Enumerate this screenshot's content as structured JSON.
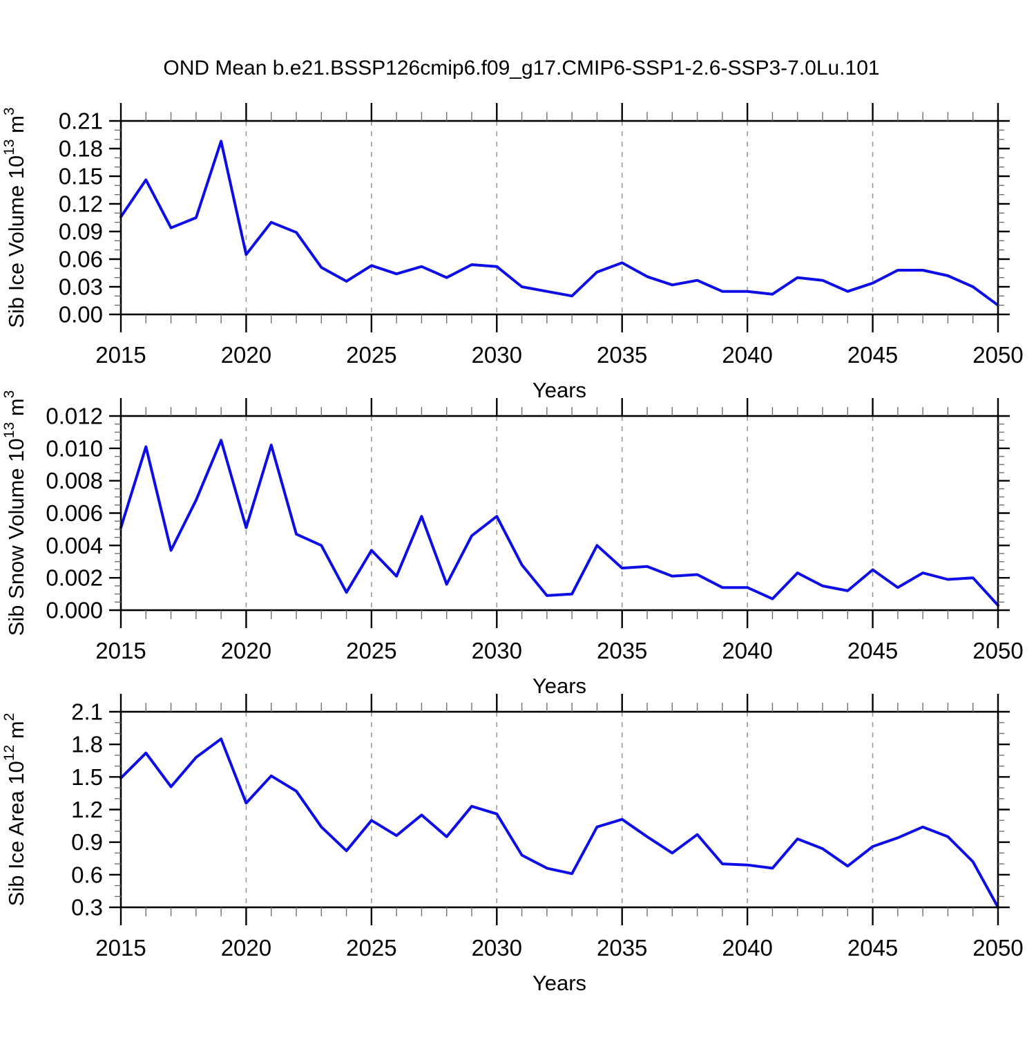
{
  "title": "OND Mean b.e21.BSSP126cmip6.f09_g17.CMIP6-SSP1-2.6-SSP3-7.0Lu.101",
  "line_color": "#0d0de8",
  "gridline_color": "#9a9a9a",
  "chart_data": [
    {
      "type": "line",
      "title": "",
      "xlabel": "Years",
      "ylabel": "Sib Ice Volume 10^13 m^3",
      "x": [
        2015,
        2016,
        2017,
        2018,
        2019,
        2020,
        2021,
        2022,
        2023,
        2024,
        2025,
        2026,
        2027,
        2028,
        2029,
        2030,
        2031,
        2032,
        2033,
        2034,
        2035,
        2036,
        2037,
        2038,
        2039,
        2040,
        2041,
        2042,
        2043,
        2044,
        2045,
        2046,
        2047,
        2048,
        2049,
        2050
      ],
      "values": [
        0.106,
        0.146,
        0.094,
        0.105,
        0.188,
        0.065,
        0.1,
        0.089,
        0.051,
        0.036,
        0.053,
        0.044,
        0.052,
        0.04,
        0.054,
        0.052,
        0.03,
        0.025,
        0.02,
        0.046,
        0.056,
        0.041,
        0.032,
        0.037,
        0.025,
        0.025,
        0.022,
        0.04,
        0.037,
        0.025,
        0.034,
        0.048,
        0.048,
        0.042,
        0.03,
        0.01
      ],
      "xlim": [
        2015,
        2050
      ],
      "ylim": [
        0.0,
        0.21
      ],
      "x_major_step": 5,
      "x_minor_step": 1,
      "y_major_step": 0.03,
      "y_minor_step": 0.01,
      "y_decimals": 2,
      "gridlines_x": [
        2020,
        2025,
        2030,
        2035,
        2040,
        2045
      ],
      "grid": "vertical-dashed-only",
      "legend": "none"
    },
    {
      "type": "line",
      "title": "",
      "xlabel": "Years",
      "ylabel": "Sib Snow Volume 10^13 m^3",
      "x": [
        2015,
        2016,
        2017,
        2018,
        2019,
        2020,
        2021,
        2022,
        2023,
        2024,
        2025,
        2026,
        2027,
        2028,
        2029,
        2030,
        2031,
        2032,
        2033,
        2034,
        2035,
        2036,
        2037,
        2038,
        2039,
        2040,
        2041,
        2042,
        2043,
        2044,
        2045,
        2046,
        2047,
        2048,
        2049,
        2050
      ],
      "values": [
        0.0051,
        0.0101,
        0.0037,
        0.0068,
        0.0105,
        0.0051,
        0.0102,
        0.0047,
        0.004,
        0.0011,
        0.0037,
        0.0021,
        0.0058,
        0.0016,
        0.0046,
        0.0058,
        0.0028,
        0.0009,
        0.001,
        0.004,
        0.0026,
        0.0027,
        0.0021,
        0.0022,
        0.0014,
        0.0014,
        0.0007,
        0.0023,
        0.0015,
        0.0012,
        0.0025,
        0.0014,
        0.0023,
        0.0019,
        0.002,
        0.0003
      ],
      "xlim": [
        2015,
        2050
      ],
      "ylim": [
        0.0,
        0.012
      ],
      "x_major_step": 5,
      "x_minor_step": 1,
      "y_major_step": 0.002,
      "y_minor_step": 0.0005,
      "y_decimals": 3,
      "gridlines_x": [
        2020,
        2025,
        2030,
        2035,
        2040,
        2045
      ],
      "grid": "vertical-dashed-only",
      "legend": "none"
    },
    {
      "type": "line",
      "title": "",
      "xlabel": "Years",
      "ylabel": "Sib Ice Area 10^12 m^2",
      "x": [
        2015,
        2016,
        2017,
        2018,
        2019,
        2020,
        2021,
        2022,
        2023,
        2024,
        2025,
        2026,
        2027,
        2028,
        2029,
        2030,
        2031,
        2032,
        2033,
        2034,
        2035,
        2036,
        2037,
        2038,
        2039,
        2040,
        2041,
        2042,
        2043,
        2044,
        2045,
        2046,
        2047,
        2048,
        2049,
        2050
      ],
      "values": [
        1.49,
        1.72,
        1.41,
        1.68,
        1.85,
        1.26,
        1.51,
        1.37,
        1.04,
        0.82,
        1.1,
        0.96,
        1.15,
        0.95,
        1.23,
        1.16,
        0.78,
        0.66,
        0.61,
        1.04,
        1.11,
        0.95,
        0.8,
        0.97,
        0.7,
        0.69,
        0.66,
        0.93,
        0.84,
        0.68,
        0.86,
        0.94,
        1.04,
        0.95,
        0.72,
        0.3
      ],
      "xlim": [
        2015,
        2050
      ],
      "ylim": [
        0.3,
        2.1
      ],
      "x_major_step": 5,
      "x_minor_step": 1,
      "y_major_step": 0.3,
      "y_minor_step": 0.1,
      "y_decimals": 1,
      "gridlines_x": [
        2020,
        2025,
        2030,
        2035,
        2040,
        2045
      ],
      "grid": "vertical-dashed-only",
      "legend": "none"
    }
  ]
}
